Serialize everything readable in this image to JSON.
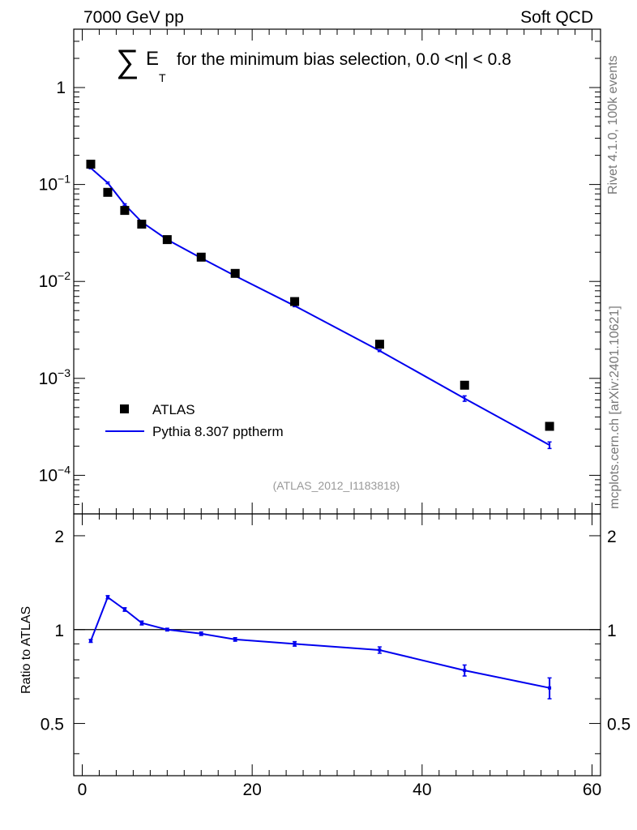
{
  "header": {
    "left": "7000 GeV pp",
    "right": "Soft QCD"
  },
  "side_labels": {
    "rivet": "Rivet 4.1.0,  100k events",
    "mcplots": "mcplots.cern.ch [arXiv:2401.10621]"
  },
  "chart_data": [
    {
      "type": "scatter",
      "panel": "main",
      "title_sum": "∑",
      "title_e": "E",
      "title_sub": "T",
      "title_rest": "for the minimum bias selection, 0.0 <η| < 0.8",
      "watermark": "(ATLAS_2012_I1183818)",
      "xlim": [
        -1,
        61
      ],
      "ylim": [
        4e-05,
        4
      ],
      "yscale": "log",
      "ytick_labels": [
        {
          "base": "10",
          "exp": "−4",
          "value": 0.0001
        },
        {
          "base": "10",
          "exp": "−3",
          "value": 0.001
        },
        {
          "base": "10",
          "exp": "−2",
          "value": 0.01
        },
        {
          "base": "10",
          "exp": "−1",
          "value": 0.1
        },
        {
          "base": "1",
          "exp": "",
          "value": 1
        }
      ],
      "legend_position": "lower-left",
      "series": [
        {
          "name": "ATLAS",
          "style": "markers",
          "color": "#000000",
          "x": [
            1,
            3,
            5,
            7,
            10,
            14,
            18,
            25,
            35,
            45,
            55
          ],
          "y": [
            0.162,
            0.083,
            0.054,
            0.039,
            0.027,
            0.0178,
            0.0121,
            0.0062,
            0.00225,
            0.00085,
            0.00032
          ]
        },
        {
          "name": "Pythia 8.307 pptherm",
          "style": "line",
          "color": "#0000ee",
          "x": [
            1,
            3,
            5,
            7,
            10,
            14,
            18,
            25,
            35,
            45,
            55
          ],
          "y": [
            0.148,
            0.104,
            0.062,
            0.041,
            0.027,
            0.0174,
            0.0114,
            0.0056,
            0.00193,
            0.00062,
            0.000205
          ],
          "yerr": [
            0,
            0,
            0,
            0,
            0,
            0,
            0,
            0,
            4e-05,
            4e-05,
            1.6e-05
          ]
        }
      ]
    },
    {
      "type": "line",
      "panel": "ratio",
      "ylabel": "Ratio to ATLAS",
      "xlim": [
        -1,
        61
      ],
      "ylim": [
        0.34,
        2.35
      ],
      "ylim_note": "log-scaled ratio axis",
      "yscale": "log",
      "xticks": [
        0,
        20,
        40,
        60
      ],
      "xtick_labels": [
        "0",
        "20",
        "40",
        "60"
      ],
      "ytick_labels": [
        {
          "label": "0.5",
          "value": 0.5
        },
        {
          "label": "1",
          "value": 1
        },
        {
          "label": "2",
          "value": 2
        }
      ],
      "reference_line": 1,
      "series": [
        {
          "name": "Pythia 8.307 pptherm / ATLAS",
          "color": "#0000ee",
          "x": [
            1,
            3,
            5,
            7,
            10,
            14,
            18,
            25,
            35,
            45,
            55
          ],
          "y": [
            0.92,
            1.27,
            1.16,
            1.05,
            1.0,
            0.97,
            0.93,
            0.9,
            0.86,
            0.74,
            0.65
          ],
          "yerr": [
            0.01,
            0.015,
            0.015,
            0.015,
            0.01,
            0.012,
            0.012,
            0.015,
            0.02,
            0.03,
            0.05
          ]
        }
      ]
    }
  ]
}
